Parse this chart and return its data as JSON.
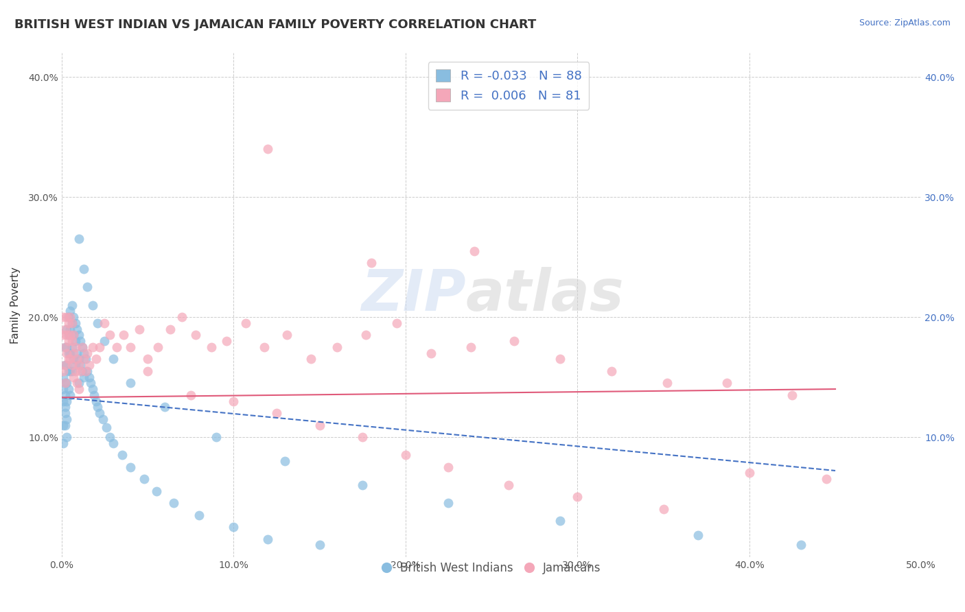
{
  "title": "BRITISH WEST INDIAN VS JAMAICAN FAMILY POVERTY CORRELATION CHART",
  "source": "Source: ZipAtlas.com",
  "xlabel": "",
  "ylabel": "Family Poverty",
  "xlim": [
    0.0,
    0.5
  ],
  "ylim": [
    0.0,
    0.42
  ],
  "xticks": [
    0.0,
    0.1,
    0.2,
    0.3,
    0.4,
    0.5
  ],
  "yticks": [
    0.1,
    0.2,
    0.3,
    0.4
  ],
  "xtick_labels": [
    "0.0%",
    "10.0%",
    "20.0%",
    "30.0%",
    "40.0%",
    "50.0%"
  ],
  "ytick_labels_left": [
    "10.0%",
    "20.0%",
    "30.0%",
    "40.0%"
  ],
  "ytick_labels_right": [
    "10.0%",
    "20.0%",
    "30.0%",
    "40.0%"
  ],
  "color_blue": "#89bde0",
  "color_pink": "#f4a7b9",
  "color_blue_line": "#4472c4",
  "color_pink_line": "#e05a7a",
  "legend_blue_label": "R = -0.033   N = 88",
  "legend_pink_label": "R =  0.006   N = 81",
  "legend_label_blue": "British West Indians",
  "legend_label_pink": "Jamaicans",
  "watermark_zip": "ZIP",
  "watermark_atlas": "atlas",
  "title_fontsize": 13,
  "label_fontsize": 11,
  "tick_fontsize": 10,
  "blue_x": [
    0.001,
    0.001,
    0.001,
    0.001,
    0.001,
    0.002,
    0.002,
    0.002,
    0.002,
    0.002,
    0.002,
    0.002,
    0.003,
    0.003,
    0.003,
    0.003,
    0.003,
    0.003,
    0.003,
    0.004,
    0.004,
    0.004,
    0.004,
    0.004,
    0.005,
    0.005,
    0.005,
    0.005,
    0.005,
    0.006,
    0.006,
    0.006,
    0.006,
    0.007,
    0.007,
    0.007,
    0.008,
    0.008,
    0.008,
    0.009,
    0.009,
    0.01,
    0.01,
    0.01,
    0.011,
    0.011,
    0.012,
    0.012,
    0.013,
    0.013,
    0.014,
    0.015,
    0.016,
    0.017,
    0.018,
    0.019,
    0.02,
    0.021,
    0.022,
    0.024,
    0.026,
    0.028,
    0.03,
    0.035,
    0.04,
    0.048,
    0.055,
    0.065,
    0.08,
    0.1,
    0.12,
    0.15,
    0.01,
    0.013,
    0.015,
    0.018,
    0.021,
    0.025,
    0.03,
    0.04,
    0.06,
    0.09,
    0.13,
    0.175,
    0.225,
    0.29,
    0.37,
    0.43
  ],
  "blue_y": [
    0.13,
    0.11,
    0.15,
    0.095,
    0.14,
    0.175,
    0.16,
    0.125,
    0.145,
    0.11,
    0.135,
    0.12,
    0.19,
    0.175,
    0.16,
    0.145,
    0.13,
    0.115,
    0.1,
    0.2,
    0.185,
    0.17,
    0.155,
    0.14,
    0.205,
    0.19,
    0.17,
    0.155,
    0.135,
    0.21,
    0.195,
    0.175,
    0.155,
    0.2,
    0.185,
    0.165,
    0.195,
    0.18,
    0.16,
    0.19,
    0.17,
    0.185,
    0.165,
    0.145,
    0.18,
    0.16,
    0.175,
    0.155,
    0.17,
    0.15,
    0.165,
    0.155,
    0.15,
    0.145,
    0.14,
    0.135,
    0.13,
    0.125,
    0.12,
    0.115,
    0.108,
    0.1,
    0.095,
    0.085,
    0.075,
    0.065,
    0.055,
    0.045,
    0.035,
    0.025,
    0.015,
    0.01,
    0.265,
    0.24,
    0.225,
    0.21,
    0.195,
    0.18,
    0.165,
    0.145,
    0.125,
    0.1,
    0.08,
    0.06,
    0.045,
    0.03,
    0.018,
    0.01
  ],
  "pink_x": [
    0.001,
    0.001,
    0.001,
    0.002,
    0.002,
    0.002,
    0.002,
    0.003,
    0.003,
    0.003,
    0.004,
    0.004,
    0.004,
    0.005,
    0.005,
    0.005,
    0.006,
    0.006,
    0.006,
    0.007,
    0.007,
    0.007,
    0.008,
    0.008,
    0.009,
    0.009,
    0.01,
    0.01,
    0.011,
    0.012,
    0.013,
    0.014,
    0.015,
    0.016,
    0.018,
    0.02,
    0.022,
    0.025,
    0.028,
    0.032,
    0.036,
    0.04,
    0.045,
    0.05,
    0.056,
    0.063,
    0.07,
    0.078,
    0.087,
    0.096,
    0.107,
    0.118,
    0.131,
    0.145,
    0.16,
    0.177,
    0.195,
    0.215,
    0.238,
    0.263,
    0.29,
    0.32,
    0.352,
    0.387,
    0.425,
    0.05,
    0.075,
    0.1,
    0.125,
    0.15,
    0.175,
    0.2,
    0.225,
    0.26,
    0.3,
    0.35,
    0.4,
    0.445,
    0.12,
    0.18,
    0.24
  ],
  "pink_y": [
    0.185,
    0.155,
    0.2,
    0.19,
    0.175,
    0.16,
    0.145,
    0.2,
    0.185,
    0.17,
    0.195,
    0.18,
    0.165,
    0.2,
    0.185,
    0.165,
    0.195,
    0.18,
    0.16,
    0.185,
    0.17,
    0.15,
    0.175,
    0.155,
    0.165,
    0.145,
    0.16,
    0.14,
    0.155,
    0.175,
    0.165,
    0.155,
    0.17,
    0.16,
    0.175,
    0.165,
    0.175,
    0.195,
    0.185,
    0.175,
    0.185,
    0.175,
    0.19,
    0.165,
    0.175,
    0.19,
    0.2,
    0.185,
    0.175,
    0.18,
    0.195,
    0.175,
    0.185,
    0.165,
    0.175,
    0.185,
    0.195,
    0.17,
    0.175,
    0.18,
    0.165,
    0.155,
    0.145,
    0.145,
    0.135,
    0.155,
    0.135,
    0.13,
    0.12,
    0.11,
    0.1,
    0.085,
    0.075,
    0.06,
    0.05,
    0.04,
    0.07,
    0.065,
    0.34,
    0.245,
    0.255
  ]
}
